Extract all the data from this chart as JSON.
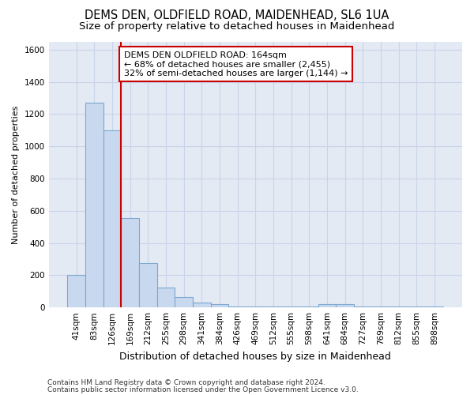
{
  "title_line1": "DEMS DEN, OLDFIELD ROAD, MAIDENHEAD, SL6 1UA",
  "title_line2": "Size of property relative to detached houses in Maidenhead",
  "xlabel": "Distribution of detached houses by size in Maidenhead",
  "ylabel": "Number of detached properties",
  "categories": [
    "41sqm",
    "83sqm",
    "126sqm",
    "169sqm",
    "212sqm",
    "255sqm",
    "298sqm",
    "341sqm",
    "384sqm",
    "426sqm",
    "469sqm",
    "512sqm",
    "555sqm",
    "598sqm",
    "641sqm",
    "684sqm",
    "727sqm",
    "769sqm",
    "812sqm",
    "855sqm",
    "898sqm"
  ],
  "values": [
    200,
    1270,
    1100,
    555,
    275,
    125,
    65,
    30,
    20,
    5,
    5,
    5,
    5,
    5,
    20,
    20,
    5,
    5,
    5,
    5,
    5
  ],
  "bar_color": "#c8d8ee",
  "bar_edge_color": "#7ba7d0",
  "red_line_index": 3,
  "annotation_line1": "DEMS DEN OLDFIELD ROAD: 164sqm",
  "annotation_line2": "← 68% of detached houses are smaller (2,455)",
  "annotation_line3": "32% of semi-detached houses are larger (1,144) →",
  "annotation_box_color": "#ffffff",
  "annotation_box_edge": "#cc0000",
  "ylim": [
    0,
    1650
  ],
  "yticks": [
    0,
    200,
    400,
    600,
    800,
    1000,
    1200,
    1400,
    1600
  ],
  "grid_color": "#c8d4e8",
  "background_color": "#e4eaf4",
  "footer_line1": "Contains HM Land Registry data © Crown copyright and database right 2024.",
  "footer_line2": "Contains public sector information licensed under the Open Government Licence v3.0.",
  "title_fontsize": 10.5,
  "subtitle_fontsize": 9.5,
  "ylabel_fontsize": 8,
  "xlabel_fontsize": 9,
  "tick_fontsize": 7.5,
  "annot_fontsize": 8,
  "footer_fontsize": 6.5
}
